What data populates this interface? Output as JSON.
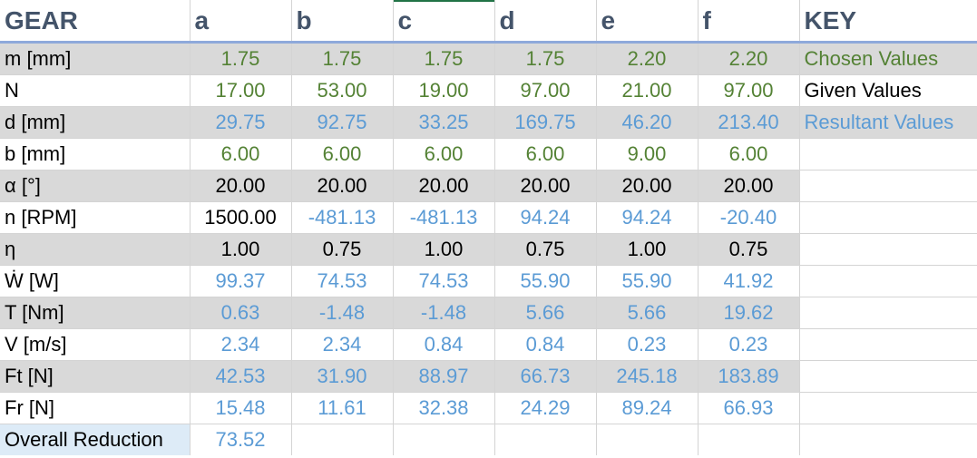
{
  "header": {
    "gear": "GEAR",
    "columns": [
      "a",
      "b",
      "c",
      "d",
      "e",
      "f"
    ],
    "key": "KEY"
  },
  "rows": [
    {
      "label": "m [mm]",
      "values": [
        "1.75",
        "1.75",
        "1.75",
        "1.75",
        "2.20",
        "2.20"
      ],
      "key": "Chosen Values"
    },
    {
      "label": "N",
      "values": [
        "17.00",
        "53.00",
        "19.00",
        "97.00",
        "21.00",
        "97.00"
      ],
      "key": "Given Values"
    },
    {
      "label": "d [mm]",
      "values": [
        "29.75",
        "92.75",
        "33.25",
        "169.75",
        "46.20",
        "213.40"
      ],
      "key": "Resultant Values"
    },
    {
      "label": "b [mm]",
      "values": [
        "6.00",
        "6.00",
        "6.00",
        "6.00",
        "9.00",
        "6.00"
      ],
      "key": ""
    },
    {
      "label": "α [°]",
      "values": [
        "20.00",
        "20.00",
        "20.00",
        "20.00",
        "20.00",
        "20.00"
      ],
      "key": ""
    },
    {
      "label": "n [RPM]",
      "values": [
        "1500.00",
        "-481.13",
        "-481.13",
        "94.24",
        "94.24",
        "-20.40"
      ],
      "key": ""
    },
    {
      "label": "η",
      "values": [
        "1.00",
        "0.75",
        "1.00",
        "0.75",
        "1.00",
        "0.75"
      ],
      "key": ""
    },
    {
      "label": "Ẇ [W]",
      "values": [
        "99.37",
        "74.53",
        "74.53",
        "55.90",
        "55.90",
        "41.92"
      ],
      "key": ""
    },
    {
      "label": "T [Nm]",
      "values": [
        "0.63",
        "-1.48",
        "-1.48",
        "5.66",
        "5.66",
        "19.62"
      ],
      "key": ""
    },
    {
      "label": "V [m/s]",
      "values": [
        "2.34",
        "2.34",
        "0.84",
        "0.84",
        "0.23",
        "0.23"
      ],
      "key": ""
    },
    {
      "label": "Ft [N]",
      "values": [
        "42.53",
        "31.90",
        "88.97",
        "66.73",
        "245.18",
        "183.89"
      ],
      "key": ""
    },
    {
      "label": "Fr [N]",
      "values": [
        "15.48",
        "11.61",
        "32.38",
        "24.29",
        "89.24",
        "66.93"
      ],
      "key": ""
    }
  ],
  "overall": {
    "label": "Overall Reduction",
    "value": "73.52"
  },
  "colors": {
    "chosen": "#548235",
    "given": "#000000",
    "resultant": "#5b9bd5",
    "shade": "#d9d9d9"
  }
}
